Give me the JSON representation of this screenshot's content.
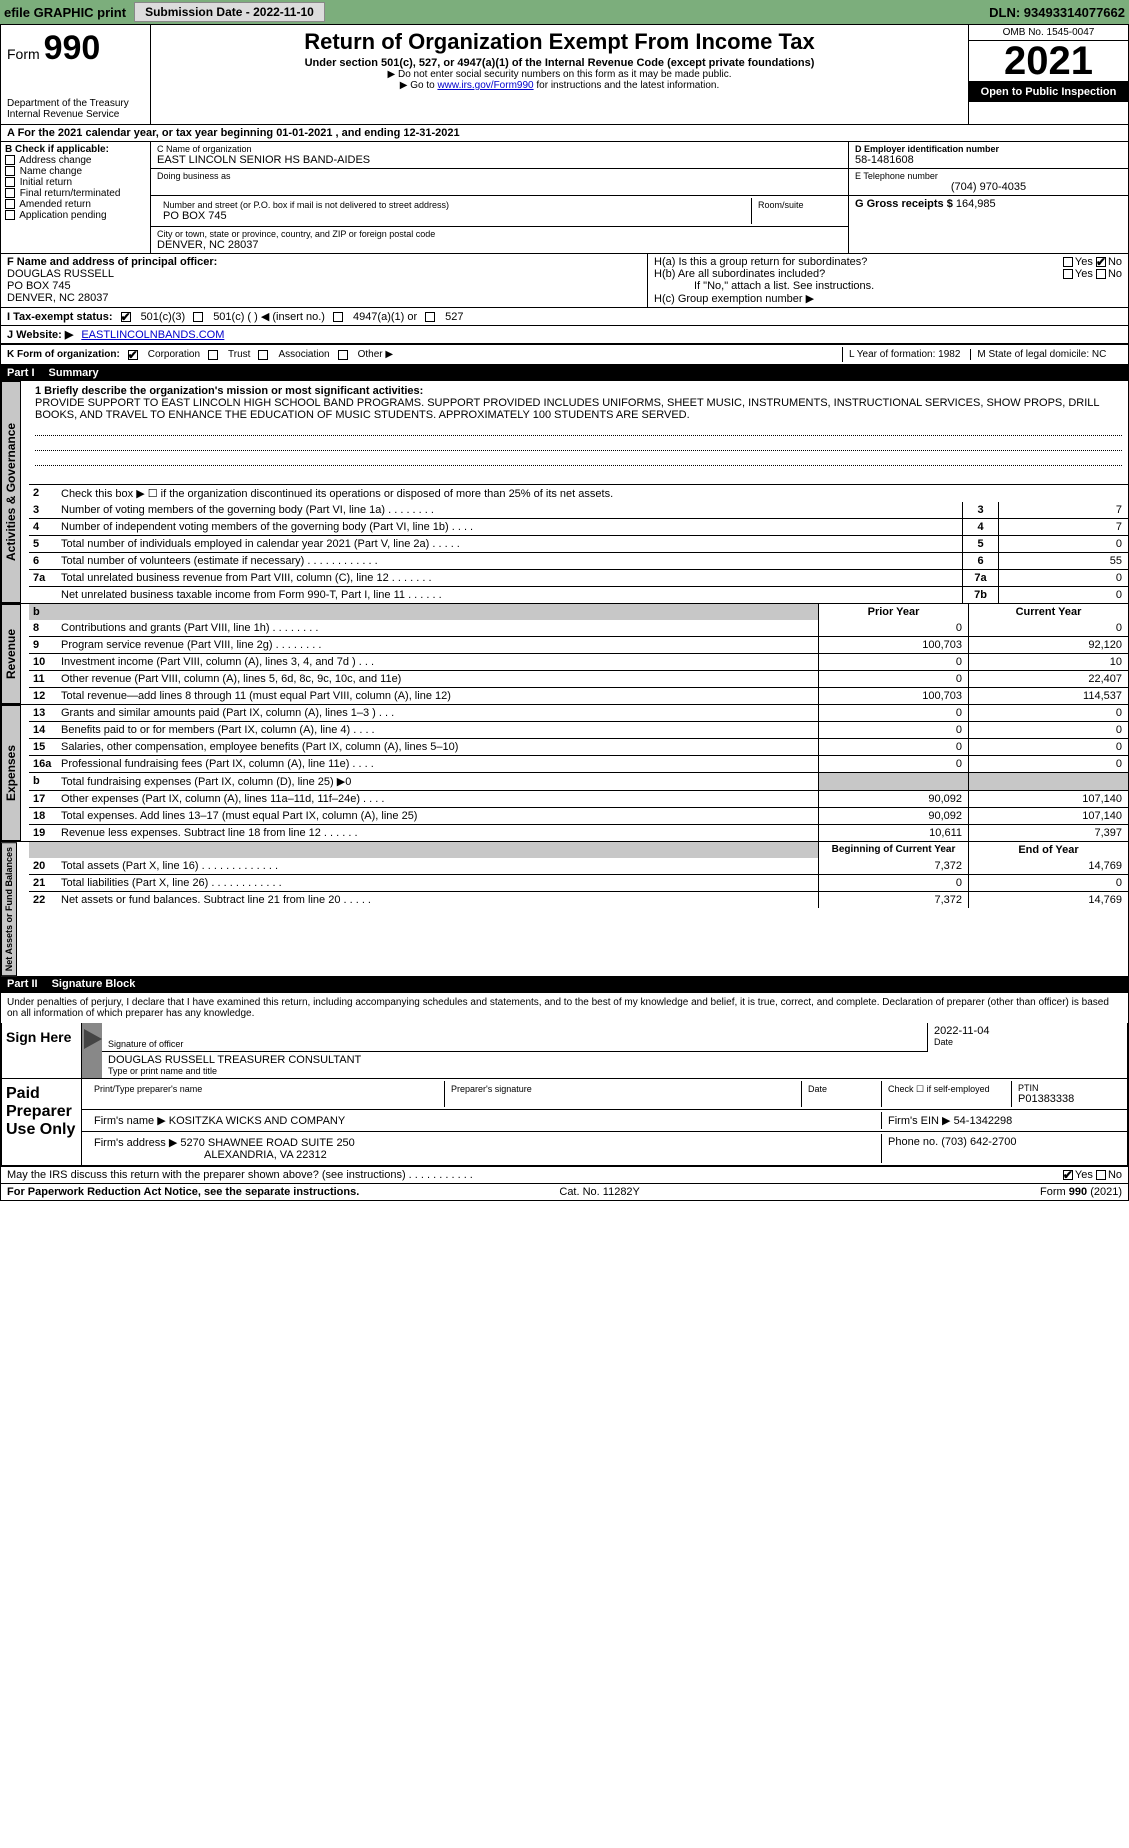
{
  "topbar": {
    "efile": "efile GRAPHIC print",
    "submission_btn": "Submission Date - 2022-11-10",
    "dln": "DLN: 93493314077662"
  },
  "header": {
    "form_label": "Form",
    "form_number": "990",
    "dept": "Department of the Treasury",
    "irs": "Internal Revenue Service",
    "title": "Return of Organization Exempt From Income Tax",
    "subtitle": "Under section 501(c), 527, or 4947(a)(1) of the Internal Revenue Code (except private foundations)",
    "note1": "▶ Do not enter social security numbers on this form as it may be made public.",
    "note2_pre": "▶ Go to ",
    "note2_link": "www.irs.gov/Form990",
    "note2_post": " for instructions and the latest information.",
    "omb": "OMB No. 1545-0047",
    "year": "2021",
    "open": "Open to Public Inspection"
  },
  "line_a": "A For the 2021 calendar year, or tax year beginning 01-01-2021     , and ending 12-31-2021",
  "block_b": {
    "title": "B Check if applicable:",
    "opts": [
      "Address change",
      "Name change",
      "Initial return",
      "Final return/terminated",
      "Amended return",
      "Application pending"
    ]
  },
  "block_c": {
    "name_lbl": "C Name of organization",
    "name": "EAST LINCOLN SENIOR HS BAND-AIDES",
    "dba_lbl": "Doing business as",
    "street_lbl": "Number and street (or P.O. box if mail is not delivered to street address)",
    "room_lbl": "Room/suite",
    "street": "PO BOX 745",
    "city_lbl": "City or town, state or province, country, and ZIP or foreign postal code",
    "city": "DENVER, NC  28037"
  },
  "block_deg": {
    "d_lbl": "D Employer identification number",
    "d_val": "58-1481608",
    "e_lbl": "E Telephone number",
    "e_val": "(704) 970-4035",
    "g_lbl": "G Gross receipts $",
    "g_val": "164,985"
  },
  "block_f": {
    "lbl": "F Name and address of principal officer:",
    "l1": "DOUGLAS RUSSELL",
    "l2": "PO BOX 745",
    "l3": "DENVER, NC  28037"
  },
  "block_h": {
    "ha": "H(a)  Is this a group return for subordinates?",
    "hb": "H(b)  Are all subordinates included?",
    "hb_note": "If \"No,\" attach a list. See instructions.",
    "hc": "H(c)  Group exemption number ▶",
    "yes": "Yes",
    "no": "No"
  },
  "row_i": {
    "lbl": "I  Tax-exempt status:",
    "o1": "501(c)(3)",
    "o2": "501(c) (   ) ◀ (insert no.)",
    "o3": "4947(a)(1) or",
    "o4": "527"
  },
  "row_j": {
    "lbl": "J  Website: ▶",
    "val": "EASTLINCOLNBANDS.COM"
  },
  "row_k": {
    "lbl": "K Form of organization:",
    "o1": "Corporation",
    "o2": "Trust",
    "o3": "Association",
    "o4": "Other ▶"
  },
  "row_lm": {
    "l": "L Year of formation: 1982",
    "m": "M State of legal domicile: NC"
  },
  "part1_hdr": {
    "pt": "Part I",
    "ttl": "Summary"
  },
  "summary": {
    "l1_lbl": "1  Briefly describe the organization's mission or most significant activities:",
    "mission": "PROVIDE SUPPORT TO EAST LINCOLN HIGH SCHOOL BAND PROGRAMS. SUPPORT PROVIDED INCLUDES UNIFORMS, SHEET MUSIC, INSTRUMENTS, INSTRUCTIONAL SERVICES, SHOW PROPS, DRILL BOOKS, AND TRAVEL TO ENHANCE THE EDUCATION OF MUSIC STUDENTS. APPROXIMATELY 100 STUDENTS ARE SERVED.",
    "l2": "Check this box ▶ ☐  if the organization discontinued its operations or disposed of more than 25% of its net assets.",
    "lines_small": [
      {
        "n": "3",
        "t": "Number of voting members of the governing body (Part VI, line 1a)   .    .    .    .    .    .    .    .",
        "box": "3",
        "v": "7"
      },
      {
        "n": "4",
        "t": "Number of independent voting members of the governing body (Part VI, line 1b)   .    .    .    .",
        "box": "4",
        "v": "7"
      },
      {
        "n": "5",
        "t": "Total number of individuals employed in calendar year 2021 (Part V, line 2a)   .    .    .    .    .",
        "box": "5",
        "v": "0"
      },
      {
        "n": "6",
        "t": "Total number of volunteers (estimate if necessary)    .    .    .    .    .    .    .    .    .    .    .    .",
        "box": "6",
        "v": "55"
      },
      {
        "n": "7a",
        "t": "Total unrelated business revenue from Part VIII, column (C), line 12    .    .    .    .    .    .    .",
        "box": "7a",
        "v": "0"
      },
      {
        "n": "",
        "t": "Net unrelated business taxable income from Form 990-T, Part I, line 11    .    .    .    .    .    .",
        "box": "7b",
        "v": "0"
      }
    ],
    "col_prior": "Prior Year",
    "col_curr": "Current Year",
    "revenue": [
      {
        "n": "8",
        "t": "Contributions and grants (Part VIII, line 1h)   .    .    .    .    .    .    .    .",
        "p": "0",
        "c": "0"
      },
      {
        "n": "9",
        "t": "Program service revenue (Part VIII, line 2g)   .    .    .    .    .    .    .    .",
        "p": "100,703",
        "c": "92,120"
      },
      {
        "n": "10",
        "t": "Investment income (Part VIII, column (A), lines 3, 4, and 7d )   .    .    .",
        "p": "0",
        "c": "10"
      },
      {
        "n": "11",
        "t": "Other revenue (Part VIII, column (A), lines 5, 6d, 8c, 9c, 10c, and 11e)",
        "p": "0",
        "c": "22,407"
      },
      {
        "n": "12",
        "t": "Total revenue—add lines 8 through 11 (must equal Part VIII, column (A), line 12)",
        "p": "100,703",
        "c": "114,537"
      }
    ],
    "expenses": [
      {
        "n": "13",
        "t": "Grants and similar amounts paid (Part IX, column (A), lines 1–3 )  .    .    .",
        "p": "0",
        "c": "0"
      },
      {
        "n": "14",
        "t": "Benefits paid to or for members (Part IX, column (A), line 4)   .    .    .    .",
        "p": "0",
        "c": "0"
      },
      {
        "n": "15",
        "t": "Salaries, other compensation, employee benefits (Part IX, column (A), lines 5–10)",
        "p": "0",
        "c": "0"
      },
      {
        "n": "16a",
        "t": "Professional fundraising fees (Part IX, column (A), line 11e)   .    .    .    .",
        "p": "0",
        "c": "0"
      },
      {
        "n": "b",
        "t": "Total fundraising expenses (Part IX, column (D), line 25) ▶0",
        "p": "",
        "c": "",
        "grey": true
      },
      {
        "n": "17",
        "t": "Other expenses (Part IX, column (A), lines 11a–11d, 11f–24e)    .    .    .    .",
        "p": "90,092",
        "c": "107,140"
      },
      {
        "n": "18",
        "t": "Total expenses. Add lines 13–17 (must equal Part IX, column (A), line 25)",
        "p": "90,092",
        "c": "107,140"
      },
      {
        "n": "19",
        "t": "Revenue less expenses. Subtract line 18 from line 12   .    .    .    .    .    .",
        "p": "10,611",
        "c": "7,397"
      }
    ],
    "col_begin": "Beginning of Current Year",
    "col_end": "End of Year",
    "netassets": [
      {
        "n": "20",
        "t": "Total assets (Part X, line 16)   .    .    .    .    .    .    .    .    .    .    .    .    .",
        "p": "7,372",
        "c": "14,769"
      },
      {
        "n": "21",
        "t": "Total liabilities (Part X, line 26)   .    .    .    .    .    .    .    .    .    .    .    .",
        "p": "0",
        "c": "0"
      },
      {
        "n": "22",
        "t": "Net assets or fund balances. Subtract line 21 from line 20   .    .    .    .    .",
        "p": "7,372",
        "c": "14,769"
      }
    ],
    "side_ag": "Activities & Governance",
    "side_rev": "Revenue",
    "side_exp": "Expenses",
    "side_net": "Net Assets or Fund Balances"
  },
  "part2_hdr": {
    "pt": "Part II",
    "ttl": "Signature Block"
  },
  "penalties": "Under penalties of perjury, I declare that I have examined this return, including accompanying schedules and statements, and to the best of my knowledge and belief, it is true, correct, and complete. Declaration of preparer (other than officer) is based on all information of which preparer has any knowledge.",
  "sign": {
    "here": "Sign Here",
    "sig_lbl": "Signature of officer",
    "date_lbl": "Date",
    "date_val": "2022-11-04",
    "name_line": "DOUGLAS RUSSELL  TREASURER CONSULTANT",
    "name_lbl": "Type or print name and title"
  },
  "paid": {
    "title": "Paid Preparer Use Only",
    "h_name": "Print/Type preparer's name",
    "h_sig": "Preparer's signature",
    "h_date": "Date",
    "h_check": "Check ☐ if self-employed",
    "h_ptin_l": "PTIN",
    "h_ptin_v": "P01383338",
    "firm_lbl": "Firm's name    ▶",
    "firm": "KOSITZKA WICKS AND COMPANY",
    "ein_lbl": "Firm's EIN ▶",
    "ein": "54-1342298",
    "addr_lbl": "Firm's address ▶",
    "addr1": "5270 SHAWNEE ROAD SUITE 250",
    "addr2": "ALEXANDRIA, VA  22312",
    "phone_lbl": "Phone no.",
    "phone": "(703) 642-2700"
  },
  "footer": {
    "may": "May the IRS discuss this return with the preparer shown above? (see instructions)    .    .    .    .    .    .    .    .    .    .    .",
    "yes": "Yes",
    "no": "No",
    "pra": "For Paperwork Reduction Act Notice, see the separate instructions.",
    "cat": "Cat. No. 11282Y",
    "form": "Form 990 (2021)"
  }
}
